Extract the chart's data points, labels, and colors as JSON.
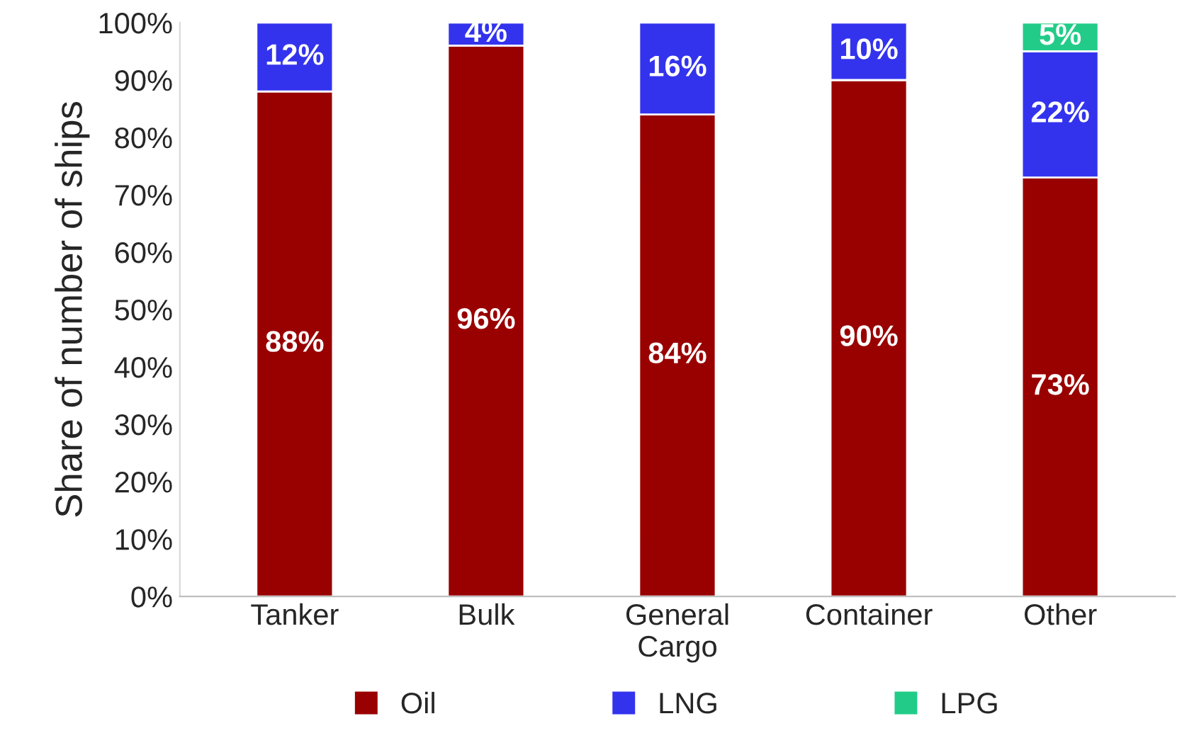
{
  "chart_data": {
    "type": "bar",
    "stacked": true,
    "ylabel": "Share of number of ships",
    "categories": [
      "Tanker",
      "Bulk",
      "General\nCargo",
      "Container",
      "Other"
    ],
    "series": [
      {
        "name": "Oil",
        "color": "#990000",
        "values": [
          88,
          96,
          84,
          90,
          73
        ],
        "value_labels": [
          "88%",
          "96%",
          "84%",
          "90%",
          "73%"
        ]
      },
      {
        "name": "LNG",
        "color": "#3333ee",
        "values": [
          12,
          4,
          16,
          10,
          22
        ],
        "value_labels": [
          "12%",
          "4%",
          "16%",
          "10%",
          "22%"
        ]
      },
      {
        "name": "LPG",
        "color": "#22cc88",
        "values": [
          null,
          null,
          null,
          null,
          5
        ],
        "value_labels": [
          null,
          null,
          null,
          null,
          "5%"
        ]
      }
    ],
    "ylim": [
      0,
      100
    ],
    "yticks": [
      {
        "value": 0,
        "label": "0%"
      },
      {
        "value": 10,
        "label": "10%"
      },
      {
        "value": 20,
        "label": "20%"
      },
      {
        "value": 30,
        "label": "30%"
      },
      {
        "value": 40,
        "label": "40%"
      },
      {
        "value": 50,
        "label": "50%"
      },
      {
        "value": 60,
        "label": "60%"
      },
      {
        "value": 70,
        "label": "70%"
      },
      {
        "value": 80,
        "label": "80%"
      },
      {
        "value": 90,
        "label": "90%"
      },
      {
        "value": 100,
        "label": "100%"
      }
    ],
    "grid": false,
    "legend": "bottom"
  }
}
